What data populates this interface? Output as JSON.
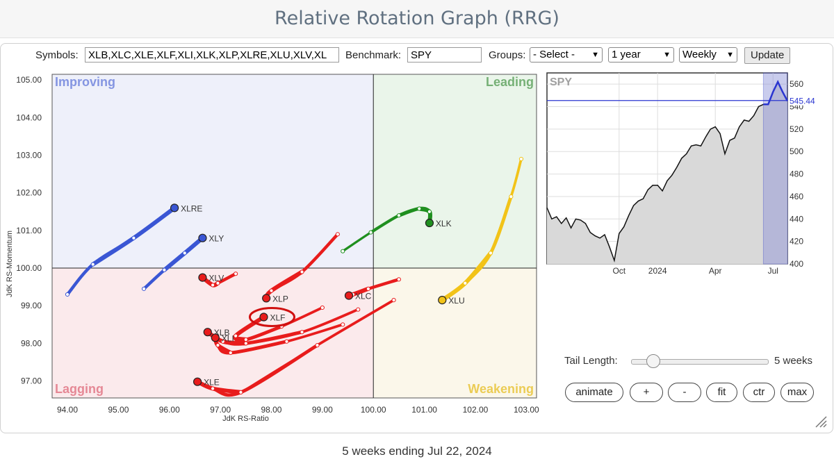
{
  "page_title": "Relative Rotation Graph (RRG)",
  "toolbar": {
    "symbols_label": "Symbols:",
    "symbols_value": "XLB,XLC,XLE,XLF,XLI,XLK,XLP,XLRE,XLU,XLV,XL",
    "benchmark_label": "Benchmark:",
    "benchmark_value": "SPY",
    "groups_label": "Groups:",
    "groups_value": "- Select -",
    "period_value": "1 year",
    "interval_value": "Weekly",
    "update_label": "Update"
  },
  "controls": {
    "tail_length_label": "Tail Length:",
    "tail_length_value": "5 weeks",
    "tail_length_level": 5,
    "buttons": [
      "animate",
      "+",
      "-",
      "fit",
      "ctr",
      "max"
    ]
  },
  "footer": "5 weeks ending Jul 22, 2024",
  "chart_data": [
    {
      "type": "scatter",
      "xlabel": "JdK RS-Ratio",
      "ylabel": "JdK RS-Momentum",
      "xlim": [
        93.7,
        103.2
      ],
      "ylim": [
        96.55,
        105.15
      ],
      "x_ticks": [
        "94.00",
        "95.00",
        "96.00",
        "97.00",
        "98.00",
        "99.00",
        "100.00",
        "101.00",
        "102.00",
        "103.00"
      ],
      "y_ticks": [
        "97.00",
        "98.00",
        "99.00",
        "100.00",
        "101.00",
        "102.00",
        "103.00",
        "104.00",
        "105.00"
      ],
      "quadrants": [
        {
          "name": "Improving",
          "color": "#6a7fdc"
        },
        {
          "name": "Leading",
          "color": "#5aa05a"
        },
        {
          "name": "Lagging",
          "color": "#e07080"
        },
        {
          "name": "Weakening",
          "color": "#e8c230"
        }
      ],
      "highlighted": "XLF",
      "series": [
        {
          "name": "XLRE",
          "color": "#3a56d4",
          "points": [
            [
              94.0,
              99.3
            ],
            [
              94.5,
              100.1
            ],
            [
              95.3,
              100.8
            ],
            [
              96.1,
              101.6
            ]
          ]
        },
        {
          "name": "XLY",
          "color": "#3a56d4",
          "points": [
            [
              95.5,
              99.45
            ],
            [
              95.9,
              99.95
            ],
            [
              96.3,
              100.4
            ],
            [
              96.65,
              100.8
            ]
          ]
        },
        {
          "name": "XLK",
          "color": "#1f8f1f",
          "points": [
            [
              99.4,
              100.45
            ],
            [
              99.95,
              100.95
            ],
            [
              100.5,
              101.4
            ],
            [
              100.9,
              101.58
            ],
            [
              101.1,
              101.5
            ],
            [
              101.1,
              101.2
            ]
          ]
        },
        {
          "name": "XLU",
          "color": "#f2c318",
          "points": [
            [
              102.9,
              102.9
            ],
            [
              102.7,
              101.9
            ],
            [
              102.3,
              100.4
            ],
            [
              101.8,
              99.6
            ],
            [
              101.35,
              99.15
            ]
          ]
        },
        {
          "name": "XLV",
          "color": "#e81c1c",
          "points": [
            [
              97.3,
              99.85
            ],
            [
              96.95,
              99.6
            ],
            [
              96.85,
              99.55
            ],
            [
              96.65,
              99.75
            ]
          ]
        },
        {
          "name": "XLP",
          "color": "#e81c1c",
          "points": [
            [
              99.3,
              100.9
            ],
            [
              98.6,
              99.9
            ],
            [
              98.0,
              99.4
            ],
            [
              97.9,
              99.2
            ]
          ]
        },
        {
          "name": "XLC",
          "color": "#e81c1c",
          "points": [
            [
              100.5,
              99.7
            ],
            [
              99.9,
              99.45
            ],
            [
              99.6,
              99.3
            ],
            [
              99.52,
              99.27
            ]
          ]
        },
        {
          "name": "XLF",
          "color": "#e81c1c",
          "points": [
            [
              99.0,
              98.95
            ],
            [
              98.2,
              98.45
            ],
            [
              97.5,
              98.1
            ],
            [
              97.3,
              98.2
            ],
            [
              97.85,
              98.7
            ]
          ]
        },
        {
          "name": "XLB",
          "color": "#e81c1c",
          "points": [
            [
              99.7,
              98.9
            ],
            [
              98.6,
              98.3
            ],
            [
              97.5,
              98.0
            ],
            [
              97.05,
              98.05
            ],
            [
              96.75,
              98.3
            ]
          ]
        },
        {
          "name": "XLI",
          "color": "#e81c1c",
          "points": [
            [
              99.4,
              98.5
            ],
            [
              98.3,
              98.05
            ],
            [
              97.2,
              97.75
            ],
            [
              96.95,
              97.95
            ],
            [
              96.9,
              98.15
            ]
          ]
        },
        {
          "name": "XLE",
          "color": "#e81c1c",
          "points": [
            [
              100.4,
              99.15
            ],
            [
              98.9,
              97.95
            ],
            [
              97.4,
              96.7
            ],
            [
              96.85,
              96.8
            ],
            [
              96.55,
              96.98
            ]
          ]
        }
      ]
    },
    {
      "type": "area",
      "title": "SPY",
      "x_ticks": [
        "Oct",
        "2024",
        "Apr",
        "Jul"
      ],
      "y_ticks": [
        "400",
        "420",
        "440",
        "460",
        "480",
        "500",
        "520",
        "540",
        "560"
      ],
      "ylim": [
        400,
        570
      ],
      "current_value": "545.44",
      "values": [
        450,
        440,
        442,
        436,
        441,
        432,
        440,
        439,
        436,
        428,
        425,
        423,
        426,
        415,
        403,
        427,
        433,
        443,
        452,
        456,
        458,
        466,
        470,
        470,
        465,
        474,
        479,
        486,
        494,
        498,
        505,
        506,
        505,
        513,
        520,
        522,
        516,
        498,
        510,
        512,
        522,
        528,
        527,
        532,
        540,
        542,
        542,
        553,
        562,
        553,
        545
      ]
    }
  ]
}
